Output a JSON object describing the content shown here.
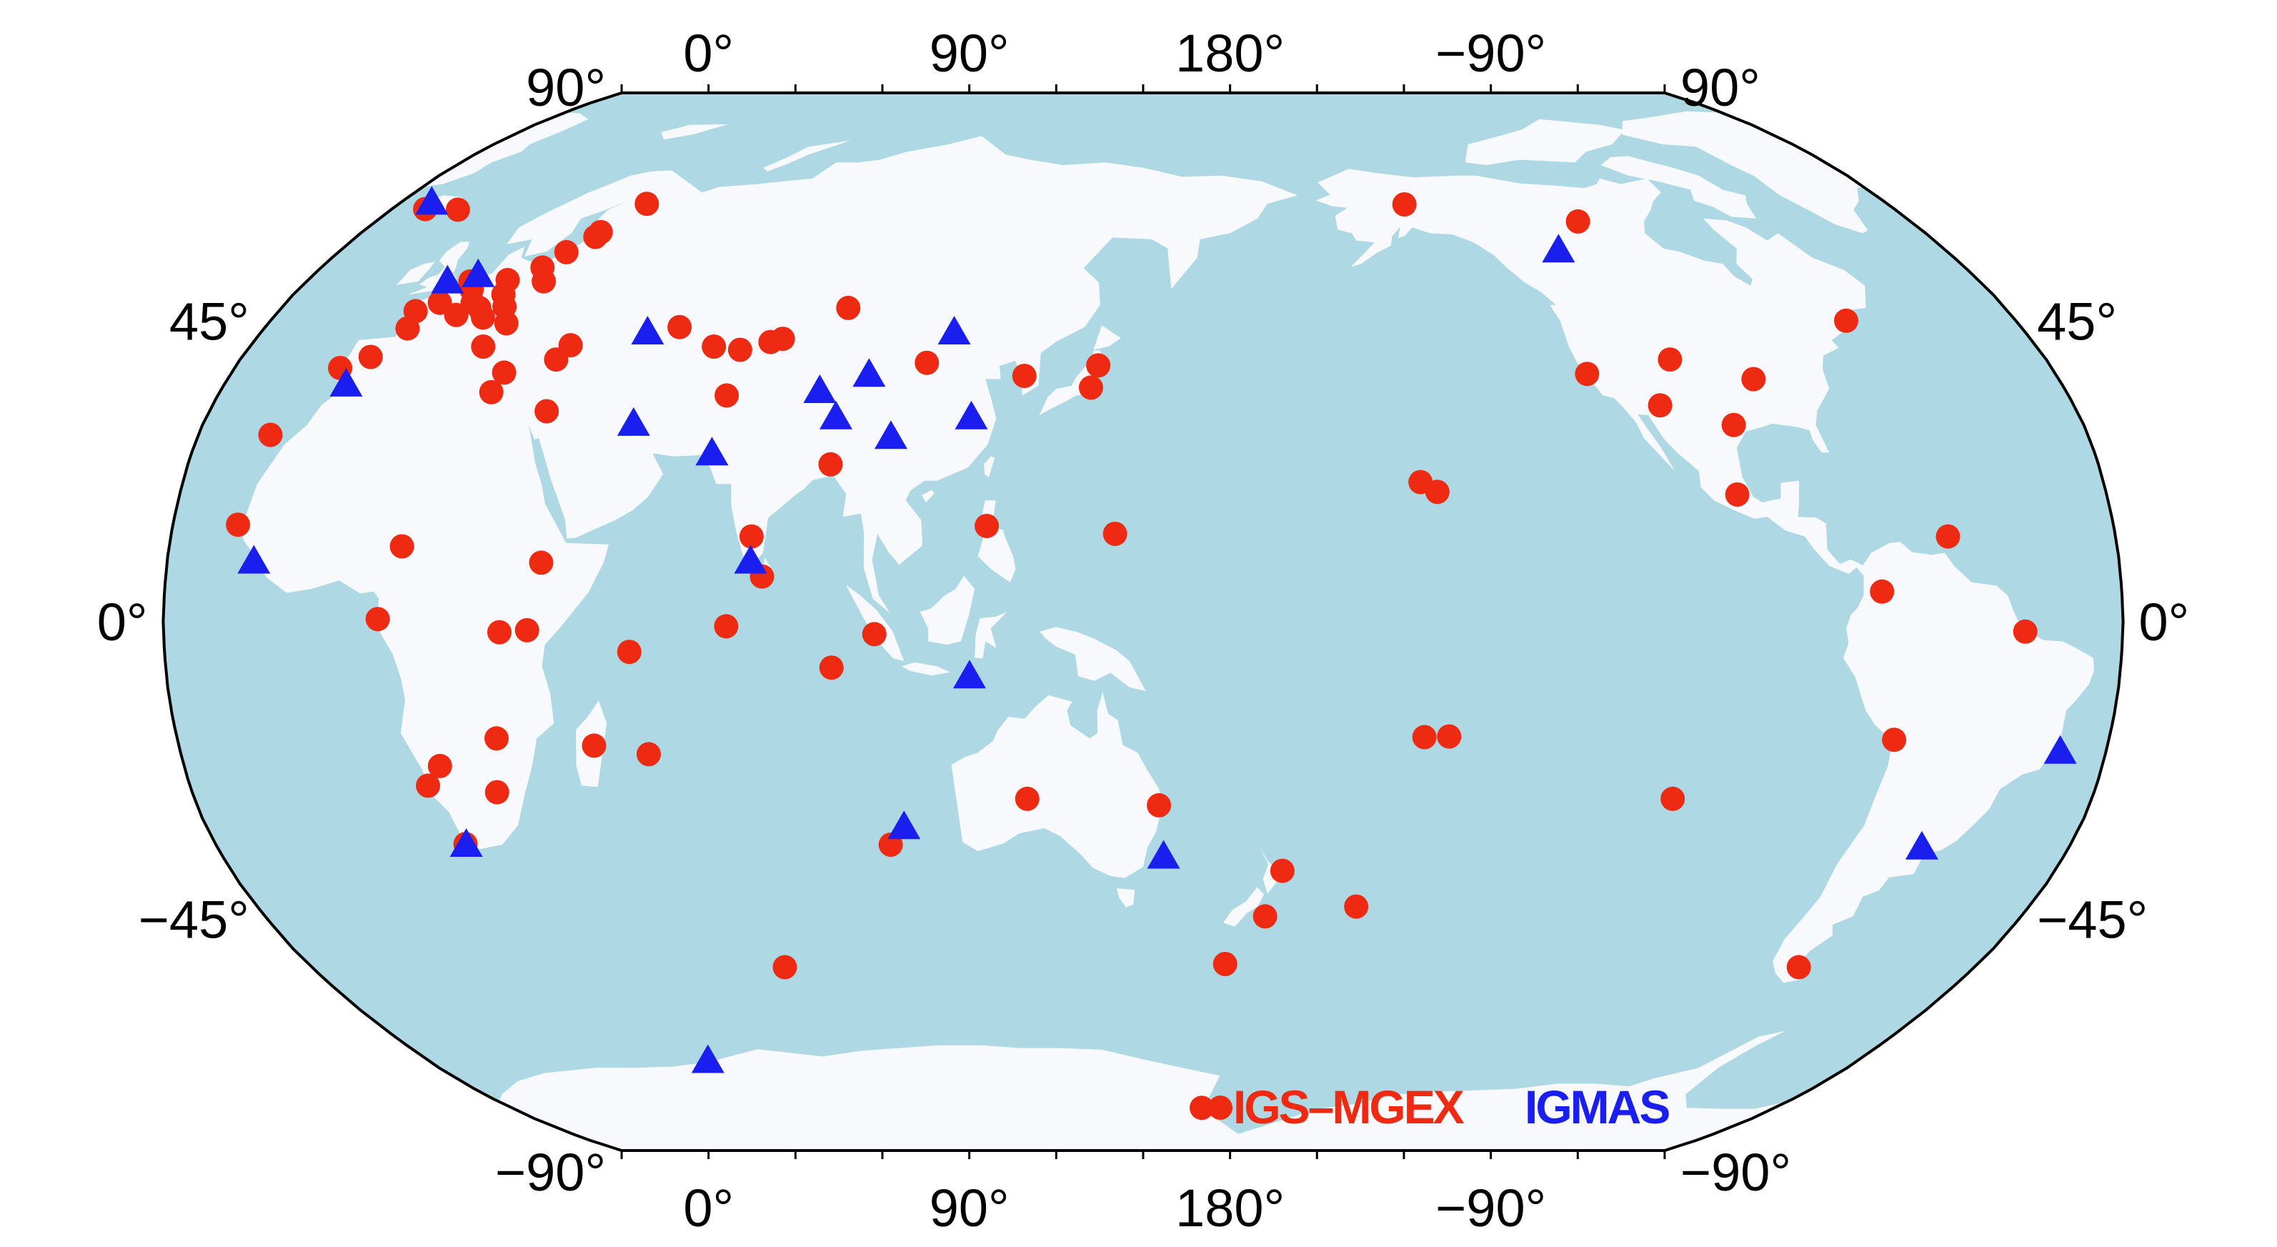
{
  "colors": {
    "ocean": "#add8e4",
    "land": "#f7f9fc",
    "frame": "#000000",
    "igs_mgex": "#ee2a12",
    "igmas": "#1a1fef"
  },
  "axes": {
    "lon_labels_top": [
      "0°",
      "90°",
      "180°",
      "−90°"
    ],
    "lon_labels_bottom": [
      "0°",
      "90°",
      "180°",
      "−90°"
    ],
    "lat_labels_left": [
      "90°",
      "45°",
      "0°",
      "−45°",
      "−90°"
    ],
    "lat_labels_right": [
      "90°",
      "45°",
      "0°",
      "−45°",
      "−90°"
    ]
  },
  "legend": {
    "igs_mgex": "IGS–MGEX",
    "igmas": "IGMAS"
  },
  "stations": {
    "igs_mgex": [
      [
        -17.9,
        14.8
      ],
      [
        -16.3,
        28.5
      ],
      [
        -9.1,
        38.7
      ],
      [
        -4.3,
        40.4
      ],
      [
        -1.5,
        47.5
      ],
      [
        -0.6,
        44.8
      ],
      [
        2.3,
        48.8
      ],
      [
        5.2,
        52.2
      ],
      [
        6.9,
        50.9
      ],
      [
        7.5,
        46.9
      ],
      [
        9.2,
        48.8
      ],
      [
        11.3,
        48.0
      ],
      [
        13.0,
        52.4
      ],
      [
        13.4,
        46.5
      ],
      [
        14.5,
        50.1
      ],
      [
        16.4,
        48.2
      ],
      [
        18.5,
        54.4
      ],
      [
        21.0,
        52.2
      ],
      [
        21.0,
        56.9
      ],
      [
        24.7,
        59.4
      ],
      [
        19.0,
        45.6
      ],
      [
        25.0,
        60.2
      ],
      [
        17.0,
        42.0
      ],
      [
        30.0,
        65.0
      ],
      [
        -22.0,
        64.1
      ],
      [
        -14.0,
        64.0
      ],
      [
        23.8,
        38.0
      ],
      [
        23.0,
        35.0
      ],
      [
        35.0,
        32.1
      ],
      [
        33.0,
        40.0
      ],
      [
        34.5,
        42.2
      ],
      [
        55.0,
        45.0
      ],
      [
        63.5,
        42.0
      ],
      [
        69.0,
        41.5
      ],
      [
        74.6,
        42.7
      ],
      [
        76.9,
        43.2
      ],
      [
        69.0,
        34.5
      ],
      [
        36.8,
        -1.3
      ],
      [
        31.7,
        -1.6
      ],
      [
        13.0,
        11.5
      ],
      [
        9.4,
        0.4
      ],
      [
        39.0,
        9.0
      ],
      [
        15.0,
        -25.0
      ],
      [
        18.0,
        -22.0
      ],
      [
        18.5,
        -33.9
      ],
      [
        27.7,
        -26.0
      ],
      [
        29.5,
        -17.8
      ],
      [
        47.5,
        -18.9
      ],
      [
        57.5,
        -20.2
      ],
      [
        55.5,
        -4.6
      ],
      [
        73.4,
        -0.7
      ],
      [
        72.4,
        -53.0
      ],
      [
        77.5,
        13.0
      ],
      [
        79.8,
        6.9
      ],
      [
        91.1,
        24.0
      ],
      [
        88.4,
        48.0
      ],
      [
        92.6,
        -7.0
      ],
      [
        100.6,
        -1.9
      ],
      [
        101.0,
        -34.0
      ],
      [
        128.0,
        -27.0
      ],
      [
        153.0,
        -28.0
      ],
      [
        121.0,
        14.6
      ],
      [
        107.0,
        39.5
      ],
      [
        126.6,
        37.5
      ],
      [
        139.8,
        35.7
      ],
      [
        141.1,
        39.1
      ],
      [
        144.8,
        13.4
      ],
      [
        167.7,
        -52.5
      ],
      [
        177.5,
        -38.0
      ],
      [
        175.0,
        -45.0
      ],
      [
        193.3,
        -43.5
      ],
      [
        202.4,
        -17.6
      ],
      [
        -155.0,
        19.8
      ],
      [
        -158.0,
        21.3
      ],
      [
        -146.9,
        64.9
      ],
      [
        -153.0,
        -17.5
      ],
      [
        -108.0,
        62.0
      ],
      [
        -122.4,
        37.8
      ],
      [
        -105.0,
        40.0
      ],
      [
        -110.0,
        33.0
      ],
      [
        -97.0,
        30.0
      ],
      [
        -90.0,
        37.0
      ],
      [
        -99.0,
        19.4
      ],
      [
        -65.0,
        46.0
      ],
      [
        -61.0,
        13.0
      ],
      [
        -74.1,
        4.6
      ],
      [
        -47.9,
        -1.5
      ],
      [
        -70.0,
        -18.0
      ],
      [
        -68.0,
        -53.0
      ],
      [
        -109.5,
        -27.0
      ],
      [
        166.7,
        -77.8
      ]
    ],
    "igmas": [
      [
        -22.0,
        65.0
      ],
      [
        -6.0,
        36.0
      ],
      [
        -14.0,
        9.0
      ],
      [
        0.5,
        52.0
      ],
      [
        6.0,
        53.0
      ],
      [
        18.5,
        -34.2
      ],
      [
        49.0,
        44.0
      ],
      [
        52.5,
        30.0
      ],
      [
        77.6,
        9.0
      ],
      [
        68.5,
        25.5
      ],
      [
        87.0,
        35.0
      ],
      [
        91.0,
        31.0
      ],
      [
        96.0,
        37.5
      ],
      [
        111.5,
        44.0
      ],
      [
        102.0,
        28.0
      ],
      [
        117.0,
        31.0
      ],
      [
        118.0,
        -8.5
      ],
      [
        104.0,
        -31.5
      ],
      [
        154.0,
        -36.0
      ],
      [
        -117.0,
        57.0
      ],
      [
        -58.5,
        -34.6
      ],
      [
        -38.5,
        -20.0
      ],
      [
        40.0,
        -69.0
      ]
    ]
  }
}
